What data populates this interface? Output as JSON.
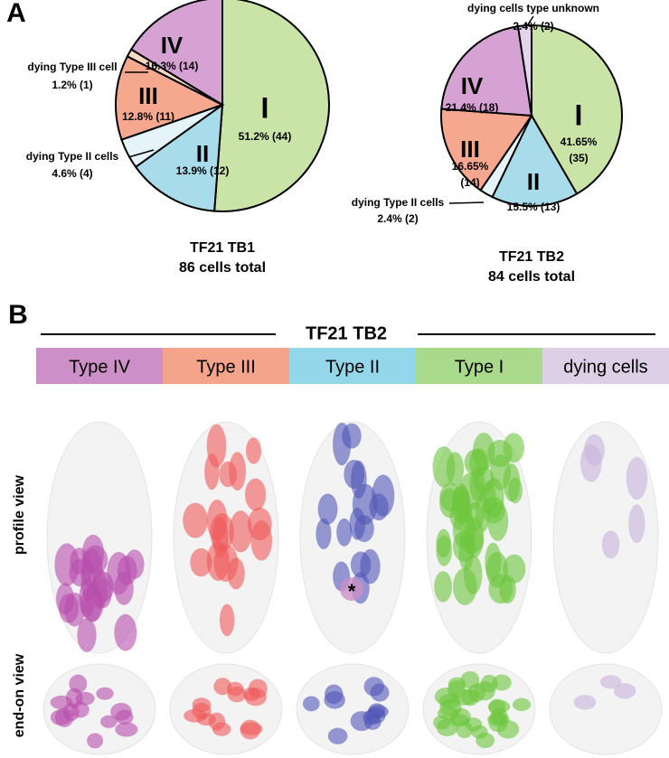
{
  "panel_labels": [
    "A",
    "B"
  ],
  "chart_data": [
    {
      "type": "pie",
      "title": "TF21 TB1",
      "subtitle": "86 cells total",
      "categories": [
        "I",
        "II",
        "dying Type II cells",
        "III",
        "dying Type III cell",
        "IV"
      ],
      "values": [
        51.2,
        13.9,
        4.6,
        12.8,
        1.2,
        16.3
      ],
      "value_labels": [
        "51.2% (44)",
        "13.9% (12)",
        "4.6% (4)",
        "12.8% (11)",
        "1.2% (1)",
        "16.3% (14)"
      ],
      "colors": [
        "#c9e4a6",
        "#a8dcea",
        "#e4f4f8",
        "#f6a88f",
        "#fbd8c8",
        "#d6a2d3"
      ]
    },
    {
      "type": "pie",
      "title": "TF21 TB2",
      "subtitle": "84 cells total",
      "categories": [
        "I",
        "II",
        "dying Type II cells",
        "III",
        "IV",
        "dying cells type unknown"
      ],
      "values": [
        41.65,
        15.5,
        2.4,
        16.65,
        21.4,
        2.4
      ],
      "value_labels": [
        "41.65% (35)",
        "15.5% (13)",
        "2.4% (2)",
        "16.65% (14)",
        "21.4% (18)",
        "2.4% (2)"
      ],
      "colors": [
        "#c9e4a6",
        "#a8dcea",
        "#e4f4f8",
        "#f6a88f",
        "#d6a2d3",
        "#e2d6ea"
      ]
    }
  ],
  "panel_b": {
    "title": "TF21 TB2",
    "columns": [
      {
        "label": "Type IV",
        "color": "#cc8fc7",
        "cell": "#b84fae"
      },
      {
        "label": "Type III",
        "color": "#f5a48c",
        "cell": "#f05a5a"
      },
      {
        "label": "Type II",
        "color": "#94d7ea",
        "cell": "#5256b8"
      },
      {
        "label": "Type I",
        "color": "#a9d98a",
        "cell": "#6cc63c"
      },
      {
        "label": "dying cells",
        "color": "#ddd0e6",
        "cell": "#c8b4dc"
      }
    ],
    "row_labels": [
      "profile view",
      "end-on view"
    ],
    "marker": "*"
  }
}
